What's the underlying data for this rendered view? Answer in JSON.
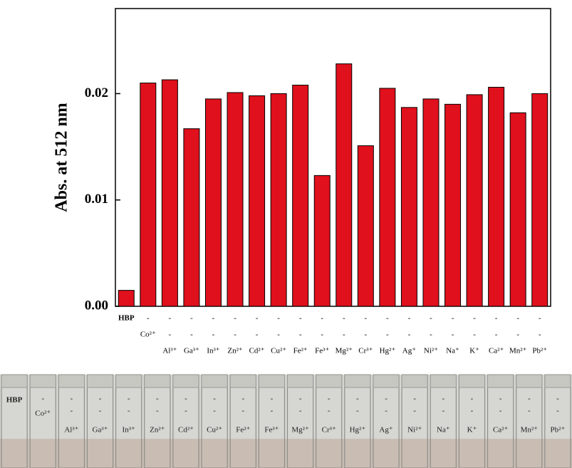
{
  "chart_data": {
    "type": "bar",
    "y_label": "Abs. at 512 nm",
    "categories": [
      "HBP",
      "Co²⁺",
      "Al³⁺",
      "Ga³⁺",
      "In³⁺",
      "Zn²⁺",
      "Cd²⁺",
      "Cu²⁺",
      "Fe²⁺",
      "Fe³⁺",
      "Mg²⁺",
      "Cr³⁺",
      "Hg²⁺",
      "Ag⁺",
      "Ni²⁺",
      "Na⁺",
      "K⁺",
      "Ca²⁺",
      "Mn²⁺",
      "Pb²⁺"
    ],
    "absent_mark": "-",
    "values": [
      0.0015,
      0.021,
      0.0213,
      0.0167,
      0.0195,
      0.0201,
      0.0198,
      0.02,
      0.0208,
      0.0123,
      0.0228,
      0.0151,
      0.0205,
      0.0187,
      0.0195,
      0.019,
      0.0199,
      0.0206,
      0.0182,
      0.02
    ],
    "color": "#e0101c",
    "ylim": [
      0,
      0.028
    ],
    "yticks": [
      {
        "value": 0,
        "label": "0.00"
      },
      0.01,
      0.02
    ]
  }
}
